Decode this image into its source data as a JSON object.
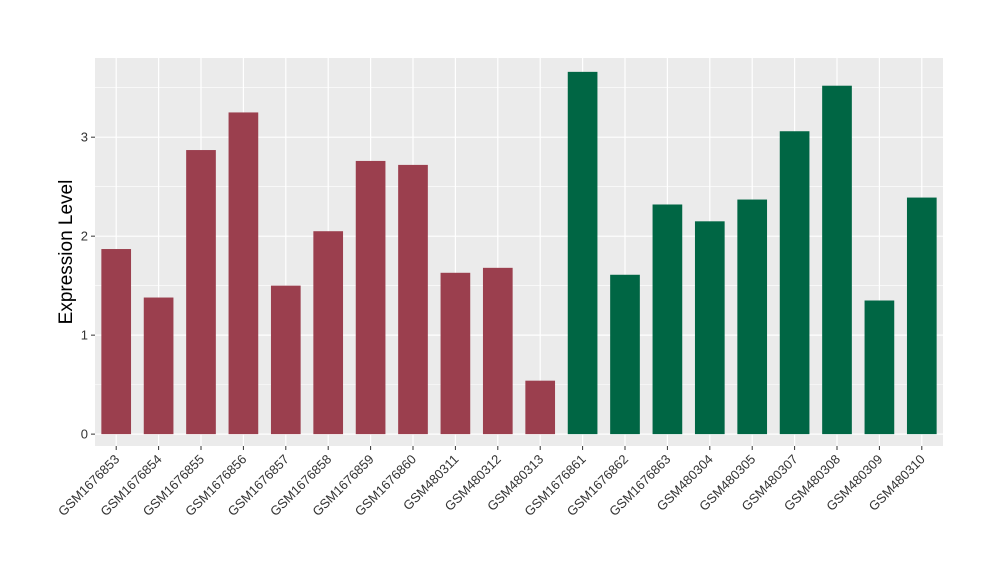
{
  "chart_data": {
    "type": "bar",
    "title": "",
    "xlabel": "",
    "ylabel": "Expression Level",
    "ylim": [
      -0.12,
      3.8
    ],
    "yticks": [
      0,
      1,
      2,
      3
    ],
    "grid": true,
    "legend": "none",
    "colors": {
      "group_a": "#9b3f4e",
      "group_b": "#006644",
      "panel": "#ebebeb",
      "gridline": "#ffffff"
    },
    "categories": [
      "GSM1676853",
      "GSM1676854",
      "GSM1676855",
      "GSM1676856",
      "GSM1676857",
      "GSM1676858",
      "GSM1676859",
      "GSM1676860",
      "GSM480311",
      "GSM480312",
      "GSM480313",
      "GSM1676861",
      "GSM1676862",
      "GSM1676863",
      "GSM480304",
      "GSM480305",
      "GSM480307",
      "GSM480308",
      "GSM480309",
      "GSM480310"
    ],
    "values": [
      1.87,
      1.38,
      2.87,
      3.25,
      1.5,
      2.05,
      2.76,
      2.72,
      1.63,
      1.68,
      0.54,
      3.66,
      1.61,
      2.32,
      2.15,
      2.37,
      3.06,
      3.52,
      1.35,
      2.39
    ],
    "groups": [
      "a",
      "a",
      "a",
      "a",
      "a",
      "a",
      "a",
      "a",
      "a",
      "a",
      "a",
      "b",
      "b",
      "b",
      "b",
      "b",
      "b",
      "b",
      "b",
      "b"
    ]
  }
}
